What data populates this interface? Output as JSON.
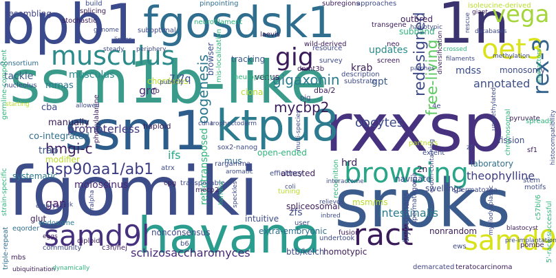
{
  "words": [
    {
      "text": "ssm1b-like",
      "color": "#3b9b8a"
    },
    {
      "text": "fgomiki",
      "color": "#3d4d8a"
    },
    {
      "text": "srpks",
      "color": "#3b5b8c"
    },
    {
      "text": "rxxsp",
      "color": "#46327e"
    },
    {
      "text": "havana",
      "color": "#2a9d8f"
    },
    {
      "text": "bpb1",
      "color": "#3a4a8c"
    },
    {
      "text": "fgosdsk1",
      "color": "#2f6e8e"
    },
    {
      "text": "1n",
      "color": "#3b3270"
    },
    {
      "text": "ssm1",
      "color": "#2e5d8c"
    },
    {
      "text": "ktpu8",
      "color": "#2c7b8e"
    },
    {
      "text": "samd9l",
      "color": "#46317e"
    },
    {
      "text": "ract",
      "color": "#3b1c5a"
    },
    {
      "text": "samd9",
      "color": "#d8e219"
    },
    {
      "text": "browsing",
      "color": "#29a587"
    },
    {
      "text": "musculus",
      "color": "#2b8a8a"
    },
    {
      "text": "gig",
      "color": "#3b1c5a"
    },
    {
      "text": "oet3",
      "color": "#d9e21b"
    },
    {
      "text": "vega",
      "color": "#a4d63b"
    },
    {
      "text": "rex-3",
      "color": "#33638d"
    },
    {
      "text": "gigaxonin",
      "color": "#2a7b8e"
    },
    {
      "text": "redesigned",
      "color": "#3e4a89"
    },
    {
      "text": "free-living",
      "color": "#5ec962"
    },
    {
      "text": "hsp90aa1/ab1",
      "color": "#3a3b84"
    },
    {
      "text": "mycbp2",
      "color": "#3b1c5a"
    },
    {
      "text": "annotated",
      "color": "#3c4e8a"
    },
    {
      "text": "theophylline",
      "color": "#3e3c82"
    },
    {
      "text": "promoterless",
      "color": "#453882"
    },
    {
      "text": "oocytes",
      "color": "#3e4a89"
    },
    {
      "text": "hmgi-c",
      "color": "#3c1f60"
    },
    {
      "text": "oogenesis",
      "color": "#2a788e"
    },
    {
      "text": "ifs",
      "color": "#24a884"
    },
    {
      "text": "molossinus",
      "color": "#482777"
    },
    {
      "text": "retrotransposed",
      "color": "#2fb47c"
    },
    {
      "text": "intestinalis",
      "color": "#2a7b8e"
    },
    {
      "text": "schizosaccharomyces",
      "color": "#482878"
    },
    {
      "text": "gan",
      "color": "#471164"
    },
    {
      "text": "zfs",
      "color": "#3e4a89"
    },
    {
      "text": "hrd",
      "color": "#3b1c5a"
    },
    {
      "text": "gpt",
      "color": "#3b5b8c"
    },
    {
      "text": "krab",
      "color": "#3b1c5a"
    },
    {
      "text": "updates",
      "color": "#2b8a8a"
    },
    {
      "text": "mdss",
      "color": "#3a4a8c"
    },
    {
      "text": "musculus",
      "color": "#2b8a8a"
    },
    {
      "text": "grc",
      "color": "#472a7a"
    },
    {
      "text": "tackle",
      "color": "#3b5b8c"
    },
    {
      "text": "mrnas",
      "color": "#2a788e"
    },
    {
      "text": "cba",
      "color": "#3e4a89"
    },
    {
      "text": "manually",
      "color": "#3b1c5a"
    },
    {
      "text": "co-integrated",
      "color": "#2f6e8e"
    },
    {
      "text": "trap",
      "color": "#3b5b8c"
    },
    {
      "text": "modifier",
      "color": "#b8de29"
    },
    {
      "text": "systematic",
      "color": "#2a788e"
    },
    {
      "text": "resembling",
      "color": "#414487"
    },
    {
      "text": "chordates",
      "color": "#b8de29"
    },
    {
      "text": "7/7q",
      "color": "#3a4a8c"
    },
    {
      "text": "browser",
      "color": "#3a4a8c"
    },
    {
      "text": "venus",
      "color": "#3b1c5a"
    },
    {
      "text": "ciona",
      "color": "#b8de29"
    },
    {
      "text": "tracking",
      "color": "#3b5b8c"
    },
    {
      "text": "subband",
      "color": "#2fb47c"
    },
    {
      "text": "outbred",
      "color": "#3b1c5a"
    },
    {
      "text": "monosomy",
      "color": "#3e4a89"
    },
    {
      "text": "fission",
      "color": "#3e4a89"
    },
    {
      "text": "laboratory",
      "color": "#2f6e8e"
    },
    {
      "text": "swellings",
      "color": "#3e4a89"
    },
    {
      "text": "navigate",
      "color": "#3a4a8c"
    },
    {
      "text": "2n",
      "color": "#3b1c5a"
    },
    {
      "text": "attested",
      "color": "#3b1c5a"
    },
    {
      "text": "open-ended",
      "color": "#2fb47c"
    },
    {
      "text": "mus",
      "color": "#2f6e8e"
    },
    {
      "text": "spliceosomal",
      "color": "#3b1c5a"
    },
    {
      "text": "msm/ms",
      "color": "#b8de29"
    },
    {
      "text": "intuitive",
      "color": "#3e4a89"
    },
    {
      "text": "extra-embryonic",
      "color": "#2f6e8e"
    },
    {
      "text": "nonconsensus",
      "color": "#3e4a89"
    },
    {
      "text": "nonrandom",
      "color": "#3b1c5a"
    },
    {
      "text": "homotypic",
      "color": "#3b1c5a"
    },
    {
      "text": "btb/kelch",
      "color": "#3e4a89"
    },
    {
      "text": "glut",
      "color": "#3b1c5a"
    },
    {
      "text": "demarcated",
      "color": "#414487"
    },
    {
      "text": "teratocarcinoma",
      "color": "#3b1c5a"
    },
    {
      "text": "pombe",
      "color": "#3b1c5a"
    },
    {
      "text": "undertook",
      "color": "#3e4a89"
    },
    {
      "text": "dba/2",
      "color": "#3b1c5a"
    },
    {
      "text": "diversification",
      "color": "#3b1c5a"
    },
    {
      "text": "efficiency",
      "color": "#3e4a89"
    },
    {
      "text": "haploid",
      "color": "#3b1c5a"
    },
    {
      "text": "c3h/hej",
      "color": "#3b1c5a"
    },
    {
      "text": "community",
      "color": "#3e4a89"
    },
    {
      "text": "endosome",
      "color": "#2a788e"
    },
    {
      "text": "user",
      "color": "#3e4a89"
    },
    {
      "text": "suboptimal",
      "color": "#3e4a89"
    },
    {
      "text": "laevis",
      "color": "#3b1c5a"
    },
    {
      "text": "wild-derived",
      "color": "#3b1c5a"
    },
    {
      "text": "spermatozoa",
      "color": "#3e4a89"
    },
    {
      "text": "stem",
      "color": "#3e4a89"
    },
    {
      "text": "motifs",
      "color": "#3e4a89"
    },
    {
      "text": "pinpointing",
      "color": "#2f6e8e"
    },
    {
      "text": "subregions",
      "color": "#3b1c5a"
    },
    {
      "text": "approaches",
      "color": "#3e4a89"
    },
    {
      "text": "screen",
      "color": "#3b1c5a"
    },
    {
      "text": "description",
      "color": "#3e4a89"
    },
    {
      "text": "survey",
      "color": "#3e4a89"
    },
    {
      "text": "neo",
      "color": "#3b1c5a"
    },
    {
      "text": "transgene",
      "color": "#3b1c5a"
    },
    {
      "text": "resource",
      "color": "#3e4a89"
    },
    {
      "text": "neurofilament",
      "color": "#2fb47c"
    },
    {
      "text": "build",
      "color": "#3e4a89"
    },
    {
      "text": "splicing",
      "color": "#3b1c5a"
    },
    {
      "text": "stochastic",
      "color": "#3b1c5a"
    },
    {
      "text": "consortium",
      "color": "#2f6e8e"
    },
    {
      "text": "nucleolus",
      "color": "#3e4a89"
    },
    {
      "text": "germline-competent",
      "color": "#2fb47c"
    },
    {
      "text": "strain-specific",
      "color": "#2fb47c"
    },
    {
      "text": "triple-repeat",
      "color": "#2f6e8e"
    },
    {
      "text": "eqorder",
      "color": "#2f6e8e"
    },
    {
      "text": "mbs",
      "color": "#3b1c5a"
    },
    {
      "text": "fb",
      "color": "#3b1c5a"
    },
    {
      "text": "pig",
      "color": "#3e4a89"
    },
    {
      "text": "dnmt3b",
      "color": "#3b1c5a"
    },
    {
      "text": "substrate",
      "color": "#3e4a89"
    },
    {
      "text": "4e",
      "color": "#3e4a89"
    },
    {
      "text": "pyruvate",
      "color": "#3b1c5a"
    },
    {
      "text": "spreads",
      "color": "#2fb47c"
    },
    {
      "text": "chromosomal",
      "color": "#2fb47c"
    },
    {
      "text": "sf1",
      "color": "#3b1c5a"
    },
    {
      "text": "extent",
      "color": "#3e4a89"
    },
    {
      "text": "zf",
      "color": "#3e4a89"
    },
    {
      "text": "partners",
      "color": "#b8de29"
    },
    {
      "text": "sox2-nanog",
      "color": "#3e4a89"
    },
    {
      "text": "rargamma",
      "color": "#3e4a89"
    },
    {
      "text": "transposable",
      "color": "#3e4a89"
    },
    {
      "text": "mecp2",
      "color": "#3b1c5a"
    },
    {
      "text": "b6",
      "color": "#3e4a89"
    },
    {
      "text": "recognition",
      "color": "#2fb47c"
    },
    {
      "text": "spermatogonia",
      "color": "#3e4a89"
    },
    {
      "text": "tryptophans",
      "color": "#3e4a89"
    },
    {
      "text": "fusion",
      "color": "#3b1c5a"
    },
    {
      "text": "myelodysplastic",
      "color": "#3e4a89"
    },
    {
      "text": "c57bl/6",
      "color": "#2fb47c"
    },
    {
      "text": "5'-race-successful",
      "color": "#2fb47c"
    },
    {
      "text": "ews",
      "color": "#3e4a89"
    },
    {
      "text": "blastocyst",
      "color": "#3b1c5a"
    },
    {
      "text": "pre-implantation",
      "color": "#3e4a89"
    },
    {
      "text": "embryo",
      "color": "#3e4a89"
    },
    {
      "text": "diploid",
      "color": "#3b1c5a"
    },
    {
      "text": "eggs",
      "color": "#3b1c5a"
    },
    {
      "text": "fgk",
      "color": "#3e4a89"
    },
    {
      "text": "cpg",
      "color": "#3b1c5a"
    },
    {
      "text": "atrx",
      "color": "#3e4a89"
    },
    {
      "text": "phenylalanine",
      "color": "#3b1c5a"
    },
    {
      "text": "allowed",
      "color": "#3e4a89"
    },
    {
      "text": "linker",
      "color": "#3e4a89"
    },
    {
      "text": "genome",
      "color": "#3e4a89"
    },
    {
      "text": "periphery",
      "color": "#3e4a89"
    },
    {
      "text": "steady",
      "color": "#3e4a89"
    },
    {
      "text": "publicly",
      "color": "#3e4a89"
    },
    {
      "text": "neuropathy",
      "color": "#2fb47c"
    },
    {
      "text": "mis-localization",
      "color": "#2fb47c"
    },
    {
      "text": "isoleucine-derived",
      "color": "#b8de29"
    },
    {
      "text": "haplotypic",
      "color": "#3e4a89"
    },
    {
      "text": "giant",
      "color": "#3b1c5a"
    },
    {
      "text": "databases",
      "color": "#3e4a89"
    },
    {
      "text": "rescue",
      "color": "#3e4a89"
    },
    {
      "text": "methylation",
      "color": "#3e4a89"
    },
    {
      "text": "filaments",
      "color": "#3e4a89"
    },
    {
      "text": "crossed",
      "color": "#2fb47c"
    },
    {
      "text": "patches",
      "color": "#3e4a89"
    },
    {
      "text": "unmethylated",
      "color": "#3e4a89"
    },
    {
      "text": "interactors",
      "color": "#2fb47c"
    },
    {
      "text": "histocompatibility",
      "color": "#3e4a89"
    },
    {
      "text": "codon-containing",
      "color": "#3e4a89"
    },
    {
      "text": "interactome",
      "color": "#3e4a89"
    },
    {
      "text": "coli",
      "color": "#3e4a89"
    },
    {
      "text": "harmful",
      "color": "#2fb47c"
    },
    {
      "text": "speckles",
      "color": "#3e4a89"
    },
    {
      "text": "relieves",
      "color": "#3e4a89"
    },
    {
      "text": "inbred",
      "color": "#3e4a89"
    },
    {
      "text": "aromatic",
      "color": "#3e4a89"
    },
    {
      "text": "trophectoderm",
      "color": "#3e4a89"
    },
    {
      "text": "multi-species",
      "color": "#3e4a89"
    },
    {
      "text": "cdna",
      "color": "#3e4a89"
    },
    {
      "text": "ubiquitination",
      "color": "#3b1c5a"
    },
    {
      "text": "dynamically",
      "color": "#2fb47c"
    },
    {
      "text": "raralpha",
      "color": "#3e4a89"
    },
    {
      "text": "starting",
      "color": "#b8de29"
    },
    {
      "text": "tuning",
      "color": "#b8de29"
    }
  ]
}
